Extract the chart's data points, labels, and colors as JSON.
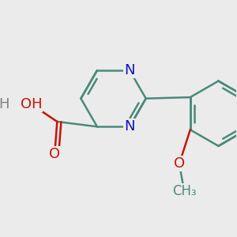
{
  "bg_color": "#ebebeb",
  "bond_color": "#4a8a7a",
  "nitrogen_color": "#1010cc",
  "oxygen_color": "#cc1100",
  "line_width": 1.8,
  "font_size": 13,
  "small_font_size": 12,
  "xlim": [
    -1.8,
    2.4
  ],
  "ylim": [
    -2.2,
    1.8
  ]
}
